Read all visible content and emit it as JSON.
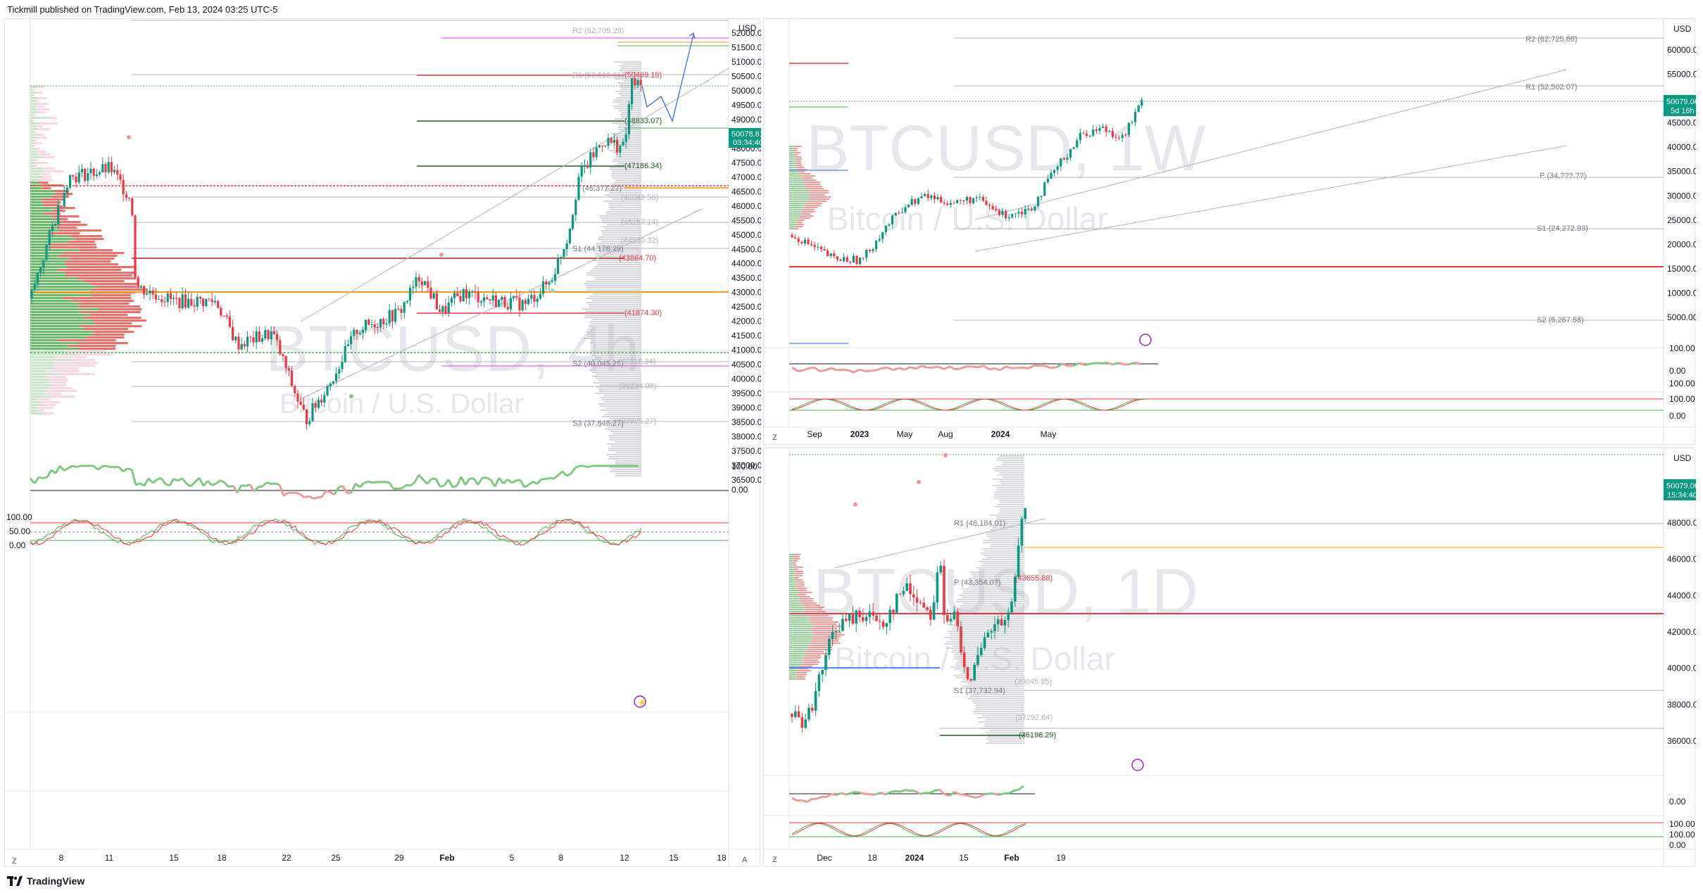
{
  "header": {
    "publish_text": "Tickmill published on TradingView.com, Feb 13, 2024 03:25 UTC-5"
  },
  "footer": {
    "brand": "TradingView"
  },
  "main_chart": {
    "currency": "USD",
    "watermark_symbol": "BTCUSD, 4h",
    "watermark_name": "Bitcoin / U.S. Dollar",
    "price_ticks": [
      "52000.00",
      "51500.00",
      "51000.00",
      "50500.00",
      "50000.00",
      "49500.00",
      "49000.00",
      "48500.00",
      "48000.00",
      "47500.00",
      "47000.00",
      "46500.00",
      "46000.00",
      "45500.00",
      "45000.00",
      "44500.00",
      "44000.00",
      "43500.00",
      "43000.00",
      "42500.00",
      "42000.00",
      "41500.00",
      "41000.00",
      "40500.00",
      "40000.00",
      "39500.00",
      "39000.00",
      "38500.00",
      "38000.00",
      "37500.00",
      "37000.00",
      "36500.00"
    ],
    "last_price": "50078.81",
    "countdown": "03:34:40",
    "levels": [
      "R2 (52,709.29)",
      "R1 (50,510.31)",
      "(50469.18)",
      "(48833.07)",
      "(47186.34)",
      "(46,377.27)",
      "(46049.56)",
      "(45157.14)",
      "(44530.32)",
      "S1 (44,178.29)",
      "(43864.70)",
      "(41874.30)",
      "S2 (40,045.25)",
      "(40116.34)",
      "(39234.08)",
      "S3 (37,846.27)",
      "(37825.27)"
    ],
    "rsi_ticks": [
      "100.00",
      "0.00"
    ],
    "stoch_ticks": [
      "100.00",
      "50.00",
      "0.00"
    ],
    "time_ticks": [
      "8",
      "11",
      "15",
      "18",
      "22",
      "25",
      "29",
      "Feb",
      "5",
      "8",
      "12",
      "15",
      "18"
    ],
    "z_button": "Z",
    "a_button": "A"
  },
  "weekly_chart": {
    "currency": "USD",
    "watermark_symbol": "BTCUSD, 1W",
    "watermark_name": "Bitcoin / U.S. Dollar",
    "price_ticks": [
      "60000.00",
      "55000.00",
      "50000.00",
      "45000.00",
      "40000.00",
      "35000.00",
      "30000.00",
      "25000.00",
      "20000.00",
      "15000.00",
      "10000.00",
      "5000.00"
    ],
    "last_price": "50079.06",
    "countdown": "5d 16h",
    "levels": [
      "R2 (62,725.86)",
      "R1 (52,502.07)",
      "P (34,???.??)",
      "S1 (24,272.93)",
      "S2 (6,267.58)"
    ],
    "osc_ticks": [
      "100.00",
      "0.00",
      "100.00",
      "100.00",
      "0.00"
    ],
    "time_ticks": [
      "Sep",
      "2023",
      "May",
      "Aug",
      "2024",
      "May"
    ],
    "z_button": "Z"
  },
  "daily_chart": {
    "currency": "USD",
    "watermark_symbol": "BTCUSD, 1D",
    "watermark_name": "Bitcoin / U.S. Dollar",
    "price_ticks": [
      "48000.00",
      "46000.00",
      "44000.00",
      "42000.00",
      "40000.00",
      "38000.00",
      "36000.00"
    ],
    "last_price": "50079.06",
    "countdown": "15:34:40",
    "levels": [
      "R1 (48,184.01)",
      "P (43,354.0?)",
      "(43655.88)",
      "(39045.85)",
      "S1 (37,732.94)",
      "(37292.64)",
      "(36196.29)"
    ],
    "osc_ticks": [
      "0.00",
      "100.00",
      "100.00",
      "0.00"
    ],
    "time_ticks": [
      "Dec",
      "18",
      "2024",
      "15",
      "Feb",
      "19"
    ],
    "z_button": "Z"
  },
  "colors": {
    "up": "#089981",
    "down": "#f23645",
    "blue": "#2962ff",
    "orange": "#ff9800",
    "purple": "#9c27b0",
    "green": "#4caf50"
  }
}
